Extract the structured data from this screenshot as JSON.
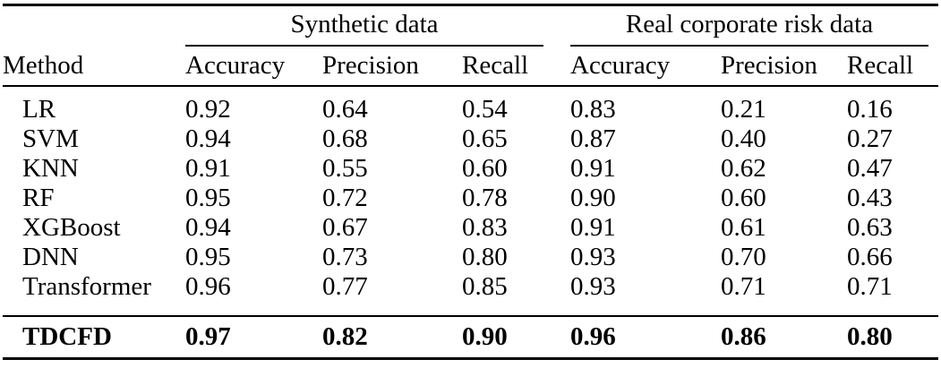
{
  "table": {
    "group_headers": [
      {
        "label": "Synthetic data",
        "span": 3
      },
      {
        "label": "Real corporate risk data",
        "span": 3
      }
    ],
    "columns": [
      "Method",
      "Accuracy",
      "Precision",
      "Recall",
      "Accuracy",
      "Precision",
      "Recall"
    ],
    "rows": [
      {
        "cells": [
          "LR",
          "0.92",
          "0.64",
          "0.54",
          "0.83",
          "0.21",
          "0.16"
        ]
      },
      {
        "cells": [
          "SVM",
          "0.94",
          "0.68",
          "0.65",
          "0.87",
          "0.40",
          "0.27"
        ]
      },
      {
        "cells": [
          "KNN",
          "0.91",
          "0.55",
          "0.60",
          "0.91",
          "0.62",
          "0.47"
        ]
      },
      {
        "cells": [
          "RF",
          "0.95",
          "0.72",
          "0.78",
          "0.90",
          "0.60",
          "0.43"
        ]
      },
      {
        "cells": [
          "XGBoost",
          "0.94",
          "0.67",
          "0.83",
          "0.91",
          "0.61",
          "0.63"
        ]
      },
      {
        "cells": [
          "DNN",
          "0.95",
          "0.73",
          "0.80",
          "0.93",
          "0.70",
          "0.66"
        ]
      },
      {
        "cells": [
          "Transformer",
          "0.96",
          "0.77",
          "0.85",
          "0.93",
          "0.71",
          "0.71"
        ]
      }
    ],
    "highlight_row": {
      "cells": [
        "TDCFD",
        "0.97",
        "0.82",
        "0.90",
        "0.96",
        "0.86",
        "0.80"
      ]
    }
  },
  "colors": {
    "background": "#ffffff",
    "text": "#000000",
    "rule": "#000000"
  }
}
